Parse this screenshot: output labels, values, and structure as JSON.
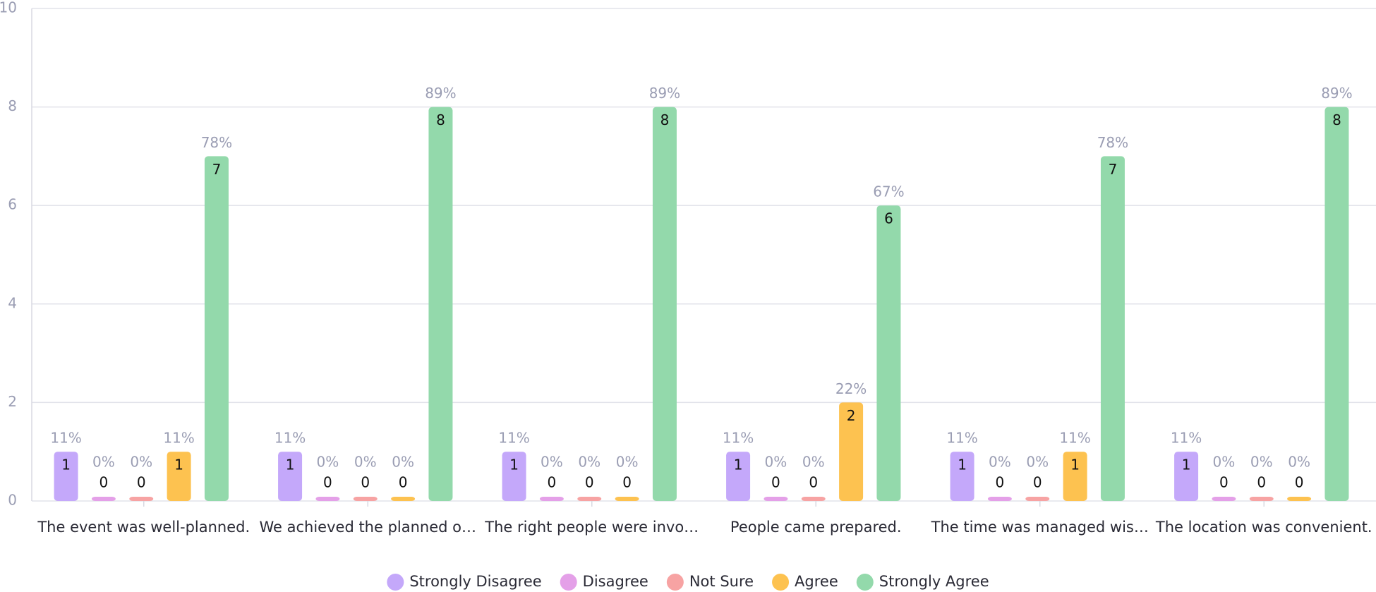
{
  "chart_data": {
    "type": "bar",
    "categories": [
      "The event was well-planned.",
      "We achieved the planned o…",
      "The right people were invo…",
      "People came prepared.",
      "The time was managed wis…",
      "The location was convenient."
    ],
    "series": [
      {
        "name": "Strongly Disagree",
        "color": "#c4a8fa",
        "values": [
          1,
          1,
          1,
          1,
          1,
          1
        ],
        "percent_labels": [
          "11%",
          "11%",
          "11%",
          "11%",
          "11%",
          "11%"
        ]
      },
      {
        "name": "Disagree",
        "color": "#e4a0e8",
        "values": [
          0,
          0,
          0,
          0,
          0,
          0
        ],
        "percent_labels": [
          "0%",
          "0%",
          "0%",
          "0%",
          "0%",
          "0%"
        ]
      },
      {
        "name": "Not Sure",
        "color": "#f7a3a3",
        "values": [
          0,
          0,
          0,
          0,
          0,
          0
        ],
        "percent_labels": [
          "0%",
          "0%",
          "0%",
          "0%",
          "0%",
          "0%"
        ]
      },
      {
        "name": "Agree",
        "color": "#fdc250",
        "values": [
          1,
          0,
          0,
          2,
          1,
          0
        ],
        "percent_labels": [
          "11%",
          "0%",
          "0%",
          "22%",
          "11%",
          "0%"
        ]
      },
      {
        "name": "Strongly Agree",
        "color": "#93d9ab",
        "values": [
          7,
          8,
          8,
          6,
          7,
          8
        ],
        "percent_labels": [
          "78%",
          "89%",
          "89%",
          "67%",
          "78%",
          "89%"
        ]
      }
    ],
    "ylim": [
      0,
      10
    ],
    "yticks": [
      0,
      2,
      4,
      6,
      8,
      10
    ],
    "grid": true,
    "legend": "bottom"
  }
}
